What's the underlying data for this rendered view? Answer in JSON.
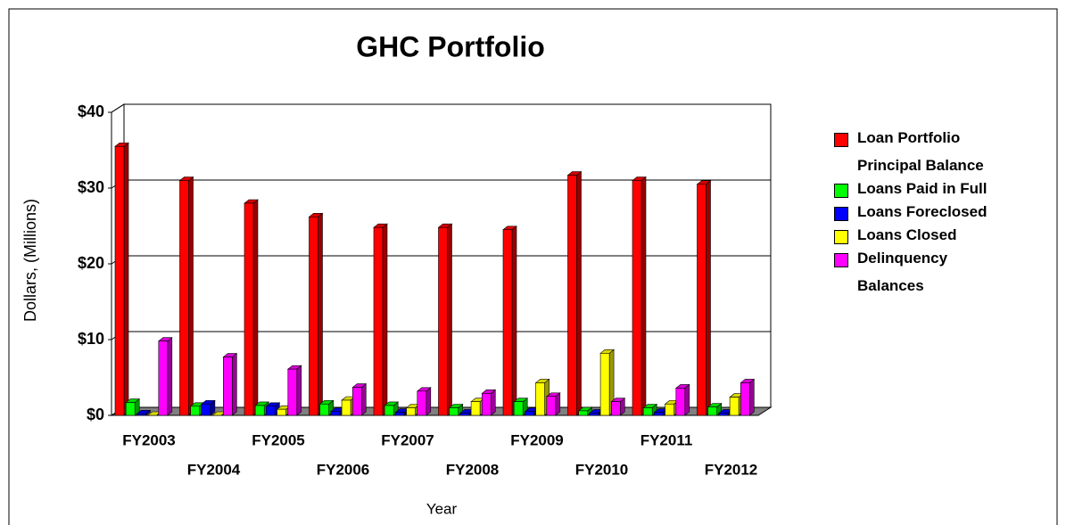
{
  "chart_data": {
    "type": "bar3d",
    "title": "GHC Portfolio",
    "y_label": "Dollars, (Millions)",
    "x_label": "Year",
    "categories": [
      "FY2003",
      "FY2004",
      "FY2005",
      "FY2006",
      "FY2007",
      "FY2008",
      "FY2009",
      "FY2010",
      "FY2011",
      "FY2012"
    ],
    "series": [
      {
        "name": "Loan Portfolio Principal Balance",
        "color": "#ff0000",
        "values": [
          35.5,
          31,
          28,
          26.2,
          24.8,
          24.8,
          24.5,
          31.7,
          31,
          30.5
        ]
      },
      {
        "name": "Loans Paid in Full",
        "color": "#00ff00",
        "values": [
          1.7,
          1.2,
          1.3,
          1.5,
          1.3,
          1.0,
          1.8,
          0.6,
          1.0,
          1.1
        ]
      },
      {
        "name": "Loans Foreclosed",
        "color": "#0000ff",
        "values": [
          0.2,
          1.5,
          1.2,
          0.5,
          0.4,
          0.3,
          0.5,
          0.3,
          0.4,
          0.3
        ]
      },
      {
        "name": "Loans Closed",
        "color": "#ffff00",
        "values": [
          0,
          0,
          0.8,
          2.0,
          1.0,
          1.8,
          4.3,
          8.2,
          1.5,
          2.4
        ]
      },
      {
        "name": "Delinquency Balances",
        "color": "#ff00ff",
        "values": [
          9.8,
          7.7,
          6.1,
          3.7,
          3.2,
          2.9,
          2.5,
          1.8,
          3.6,
          4.3
        ]
      }
    ],
    "ylim": [
      0,
      40
    ],
    "yticks": [
      {
        "value": 0,
        "label": "$0"
      },
      {
        "value": 10,
        "label": "$10"
      },
      {
        "value": 20,
        "label": "$20"
      },
      {
        "value": 30,
        "label": "$30"
      },
      {
        "value": 40,
        "label": "$40"
      }
    ],
    "grid": true,
    "legend": "right"
  }
}
